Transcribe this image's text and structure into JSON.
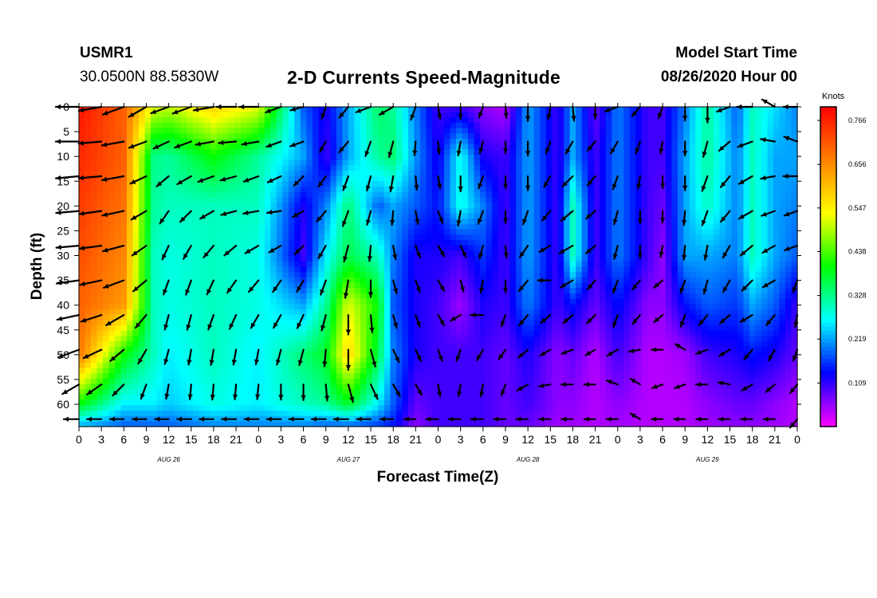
{
  "header": {
    "station_id": "USMR1",
    "station_coords": "30.0500N 88.5830W",
    "title": "2-D Currents Speed-Magnitude",
    "start_label": "Model Start Time",
    "start_value": "08/26/2020 Hour 00"
  },
  "chart_data": {
    "type": "heatmap",
    "title": "2-D Currents Speed-Magnitude",
    "xlabel": "Forecast Time(Z)",
    "ylabel": "Depth (ft)",
    "x_tick_labels": [
      "0",
      "3",
      "6",
      "9",
      "12",
      "15",
      "18",
      "21",
      "0",
      "3",
      "6",
      "9",
      "12",
      "15",
      "18",
      "21",
      "0",
      "3",
      "6",
      "9",
      "12",
      "15",
      "18",
      "21",
      "0",
      "3",
      "6",
      "9",
      "12",
      "15",
      "18",
      "21",
      "0"
    ],
    "x_range_hours": [
      0,
      96
    ],
    "date_labels": [
      {
        "label": "AUG 26",
        "hour": 12
      },
      {
        "label": "AUG 27",
        "hour": 36
      },
      {
        "label": "AUG 28",
        "hour": 60
      },
      {
        "label": "AUG 29",
        "hour": 84
      }
    ],
    "y_ticks": [
      0,
      5,
      10,
      15,
      20,
      25,
      30,
      35,
      40,
      45,
      50,
      55,
      60
    ],
    "y_tick_labels": [
      "0",
      "5",
      "10",
      "15",
      "20",
      "25",
      "30",
      "35",
      "40",
      "45",
      "50",
      "55",
      "60"
    ],
    "y_range_ft": [
      0,
      64.5
    ],
    "y_inverted": true,
    "colorbar": {
      "unit": "Knots",
      "tick_labels": [
        "0.766",
        "0.656",
        "0.547",
        "0.438",
        "0.328",
        "0.219",
        "0.109"
      ],
      "tick_values": [
        0.766,
        0.656,
        0.547,
        0.438,
        0.328,
        0.219,
        0.109
      ],
      "range": [
        0,
        0.8
      ],
      "colors": [
        "#ff00ff",
        "#0000ff",
        "#00ffff",
        "#00ff00",
        "#ffff00",
        "#ff8000",
        "#ff0000"
      ]
    },
    "speed_field": {
      "hours": [
        0,
        6,
        10,
        12,
        18,
        24,
        30,
        33,
        36,
        40,
        42,
        45,
        48,
        51,
        54,
        57,
        60,
        64,
        66,
        69,
        72,
        76,
        78,
        81,
        84,
        88,
        90,
        93,
        96
      ],
      "depths": [
        0,
        10,
        20,
        30,
        40,
        50,
        60,
        64.5
      ],
      "values": [
        [
          0.78,
          0.7,
          0.52,
          0.5,
          0.58,
          0.52,
          0.18,
          0.12,
          0.22,
          0.35,
          0.32,
          0.2,
          0.1,
          0.1,
          0.06,
          0.04,
          0.22,
          0.1,
          0.22,
          0.08,
          0.2,
          0.1,
          0.1,
          0.2,
          0.32,
          0.18,
          0.3,
          0.25,
          0.2
        ],
        [
          0.76,
          0.7,
          0.33,
          0.32,
          0.4,
          0.32,
          0.22,
          0.1,
          0.22,
          0.32,
          0.34,
          0.21,
          0.12,
          0.28,
          0.12,
          0.1,
          0.22,
          0.1,
          0.22,
          0.1,
          0.2,
          0.1,
          0.1,
          0.22,
          0.32,
          0.2,
          0.3,
          0.22,
          0.22
        ],
        [
          0.74,
          0.68,
          0.32,
          0.3,
          0.3,
          0.3,
          0.12,
          0.2,
          0.34,
          0.18,
          0.22,
          0.18,
          0.14,
          0.28,
          0.2,
          0.1,
          0.22,
          0.1,
          0.3,
          0.1,
          0.2,
          0.1,
          0.08,
          0.22,
          0.3,
          0.2,
          0.3,
          0.22,
          0.2
        ],
        [
          0.72,
          0.66,
          0.3,
          0.28,
          0.3,
          0.28,
          0.1,
          0.26,
          0.36,
          0.3,
          0.2,
          0.12,
          0.12,
          0.1,
          0.16,
          0.1,
          0.22,
          0.1,
          0.3,
          0.1,
          0.2,
          0.1,
          0.06,
          0.22,
          0.22,
          0.2,
          0.3,
          0.22,
          0.18
        ],
        [
          0.7,
          0.64,
          0.3,
          0.28,
          0.3,
          0.28,
          0.22,
          0.32,
          0.52,
          0.4,
          0.18,
          0.12,
          0.1,
          0.05,
          0.12,
          0.1,
          0.2,
          0.1,
          0.14,
          0.08,
          0.14,
          0.06,
          0.06,
          0.14,
          0.18,
          0.16,
          0.22,
          0.18,
          0.1
        ],
        [
          0.68,
          0.4,
          0.3,
          0.26,
          0.3,
          0.26,
          0.34,
          0.38,
          0.58,
          0.36,
          0.2,
          0.12,
          0.1,
          0.1,
          0.1,
          0.08,
          0.12,
          0.06,
          0.08,
          0.04,
          0.1,
          0.04,
          0.04,
          0.05,
          0.1,
          0.12,
          0.14,
          0.12,
          0.08
        ],
        [
          0.4,
          0.26,
          0.26,
          0.24,
          0.28,
          0.26,
          0.3,
          0.32,
          0.38,
          0.26,
          0.18,
          0.08,
          0.1,
          0.1,
          0.1,
          0.08,
          0.1,
          0.06,
          0.06,
          0.04,
          0.06,
          0.04,
          0.04,
          0.04,
          0.06,
          0.08,
          0.08,
          0.06,
          0.04
        ],
        [
          0.22,
          0.18,
          0.18,
          0.18,
          0.2,
          0.2,
          0.2,
          0.18,
          0.18,
          0.16,
          0.14,
          0.06,
          0.1,
          0.1,
          0.1,
          0.08,
          0.08,
          0.05,
          0.05,
          0.04,
          0.05,
          0.04,
          0.04,
          0.04,
          0.05,
          0.06,
          0.06,
          0.05,
          0.04
        ]
      ]
    },
    "vector_hours": [
      0,
      3,
      6,
      9,
      12,
      15,
      18,
      21,
      24,
      27,
      30,
      33,
      36,
      39,
      42,
      45,
      48,
      51,
      54,
      57,
      60,
      63,
      66,
      69,
      72,
      75,
      78,
      81,
      84,
      87,
      90,
      93,
      96
    ],
    "vector_depths": [
      0,
      7,
      14,
      21,
      28,
      35,
      42,
      49,
      56,
      63
    ],
    "vector_directions_deg": [
      [
        270,
        260,
        250,
        240,
        250,
        250,
        260,
        270,
        270,
        250,
        255,
        200,
        220,
        250,
        240,
        200,
        170,
        180,
        200,
        175,
        180,
        190,
        175,
        180,
        250,
        220,
        200,
        180,
        180,
        250,
        270,
        300,
        270
      ],
      [
        270,
        265,
        260,
        250,
        245,
        250,
        260,
        265,
        260,
        250,
        250,
        210,
        220,
        200,
        195,
        185,
        175,
        190,
        195,
        180,
        180,
        200,
        210,
        220,
        210,
        200,
        190,
        180,
        195,
        230,
        250,
        280,
        290
      ],
      [
        265,
        265,
        260,
        245,
        230,
        240,
        250,
        255,
        250,
        245,
        225,
        215,
        200,
        195,
        190,
        175,
        170,
        180,
        200,
        180,
        180,
        210,
        225,
        220,
        200,
        190,
        180,
        180,
        200,
        220,
        240,
        260,
        270
      ],
      [
        265,
        262,
        258,
        240,
        215,
        225,
        240,
        255,
        260,
        262,
        240,
        220,
        200,
        195,
        185,
        170,
        160,
        190,
        200,
        180,
        200,
        220,
        230,
        230,
        195,
        180,
        180,
        185,
        200,
        220,
        240,
        250,
        250
      ],
      [
        265,
        262,
        255,
        235,
        205,
        210,
        220,
        230,
        240,
        240,
        225,
        210,
        195,
        185,
        170,
        160,
        150,
        155,
        195,
        175,
        215,
        240,
        240,
        230,
        195,
        180,
        190,
        185,
        190,
        210,
        230,
        240,
        250
      ],
      [
        262,
        258,
        250,
        230,
        200,
        200,
        205,
        215,
        220,
        215,
        210,
        200,
        190,
        180,
        165,
        160,
        150,
        165,
        190,
        180,
        220,
        270,
        240,
        220,
        200,
        220,
        230,
        200,
        195,
        210,
        225,
        240,
        200
      ],
      [
        258,
        252,
        240,
        220,
        195,
        195,
        200,
        205,
        210,
        210,
        205,
        195,
        180,
        175,
        165,
        160,
        150,
        240,
        270,
        200,
        220,
        230,
        230,
        225,
        200,
        220,
        230,
        200,
        220,
        230,
        240,
        220,
        190
      ],
      [
        250,
        245,
        230,
        210,
        195,
        190,
        190,
        190,
        190,
        195,
        195,
        185,
        180,
        165,
        155,
        155,
        160,
        200,
        210,
        215,
        230,
        240,
        250,
        240,
        240,
        260,
        270,
        300,
        250,
        240,
        220,
        210,
        200
      ],
      [
        240,
        235,
        225,
        200,
        190,
        185,
        185,
        185,
        185,
        180,
        180,
        175,
        165,
        155,
        150,
        150,
        170,
        190,
        190,
        200,
        240,
        260,
        270,
        270,
        290,
        300,
        250,
        250,
        270,
        280,
        240,
        230,
        220
      ],
      [
        270,
        270,
        270,
        270,
        270,
        270,
        270,
        270,
        270,
        270,
        270,
        270,
        270,
        270,
        270,
        270,
        270,
        270,
        270,
        270,
        270,
        270,
        270,
        270,
        270,
        300,
        270,
        270,
        270,
        270,
        270,
        270,
        220
      ]
    ]
  }
}
